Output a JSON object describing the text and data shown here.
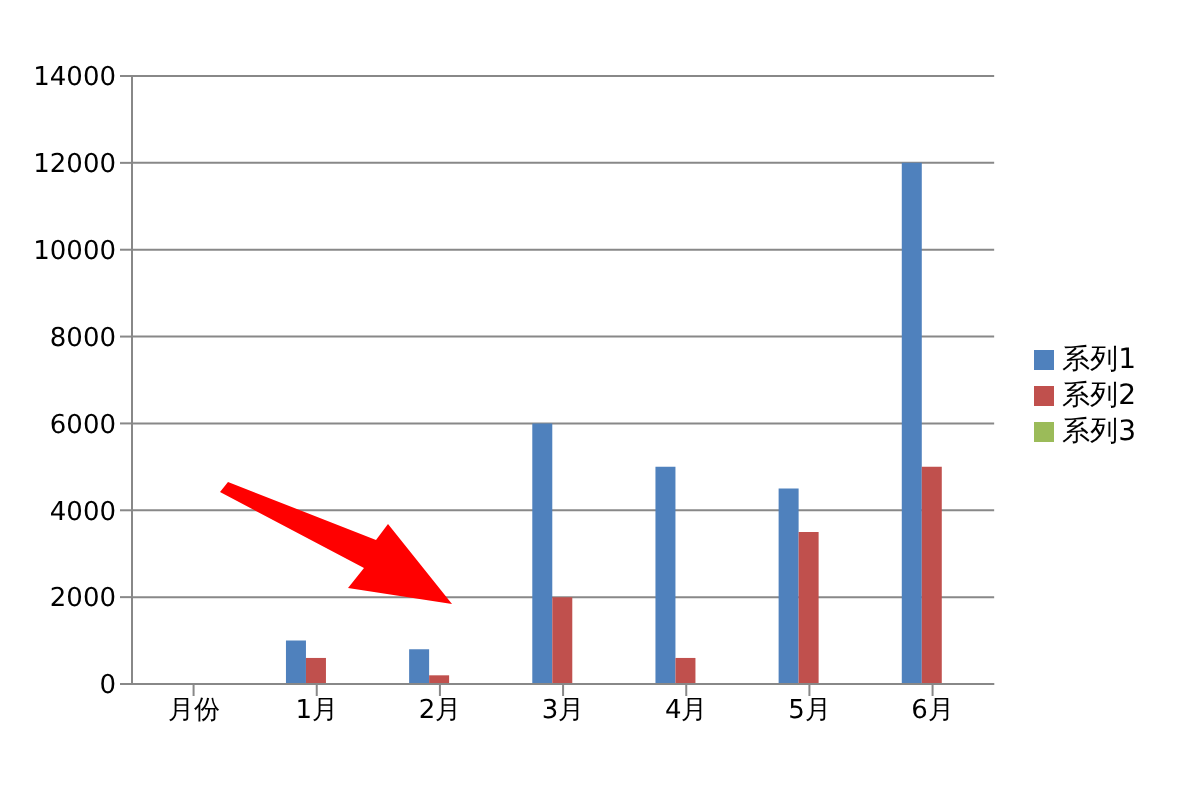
{
  "chart_data": {
    "type": "bar",
    "categories": [
      "月份",
      "1月",
      "2月",
      "3月",
      "4月",
      "5月",
      "6月"
    ],
    "series": [
      {
        "name": "系列1",
        "color": "#4f81bd",
        "values": [
          null,
          1000,
          800,
          6000,
          5000,
          4500,
          12000
        ]
      },
      {
        "name": "系列2",
        "color": "#c0504d",
        "values": [
          null,
          600,
          200,
          2000,
          600,
          3500,
          5000
        ]
      },
      {
        "name": "系列3",
        "color": "#9bbb59",
        "values": [
          null,
          null,
          null,
          null,
          null,
          null,
          null
        ]
      }
    ],
    "ylim": [
      0,
      14000
    ],
    "yticks": [
      0,
      2000,
      4000,
      6000,
      8000,
      10000,
      12000,
      14000
    ],
    "grid": "y",
    "legend": "right"
  }
}
